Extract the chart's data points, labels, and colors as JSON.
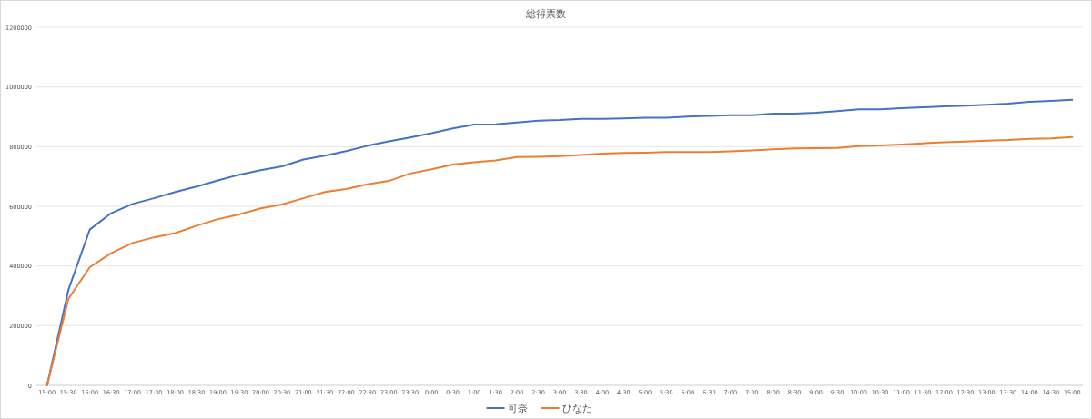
{
  "chart_data": {
    "type": "line",
    "title": "総得票数",
    "categories": [
      "15:00",
      "15:30",
      "16:00",
      "16:30",
      "17:00",
      "17:30",
      "18:00",
      "18:30",
      "19:00",
      "19:30",
      "20:00",
      "20:30",
      "21:00",
      "21:30",
      "22:00",
      "22:30",
      "23:00",
      "23:30",
      "0:00",
      "0:30",
      "1:00",
      "1:30",
      "2:00",
      "2:30",
      "3:00",
      "3:30",
      "4:00",
      "4:30",
      "5:00",
      "5:30",
      "6:00",
      "6:30",
      "7:00",
      "7:30",
      "8:00",
      "8:30",
      "9:00",
      "9:30",
      "10:00",
      "10:30",
      "11:00",
      "11:30",
      "12:00",
      "12:30",
      "13:00",
      "13:30",
      "14:00",
      "14:30",
      "15:00"
    ],
    "series": [
      {
        "name": "可奈",
        "color": "#4472c4",
        "values": [
          0,
          320000,
          522000,
          577000,
          608000,
          627000,
          648000,
          666000,
          687000,
          706000,
          721000,
          734000,
          757000,
          770000,
          785000,
          803000,
          818000,
          831000,
          845000,
          861000,
          874000,
          875000,
          881000,
          887000,
          889000,
          893000,
          893000,
          895000,
          897000,
          897000,
          901000,
          903000,
          905000,
          905000,
          911000,
          911000,
          914000,
          919000,
          925000,
          925000,
          929000,
          932000,
          935000,
          937000,
          940000,
          944000,
          950000,
          953000,
          957000
        ]
      },
      {
        "name": "ひなた",
        "color": "#ed7d31",
        "values": [
          0,
          290000,
          396000,
          443000,
          477000,
          496000,
          510000,
          535000,
          557000,
          573000,
          593000,
          606000,
          627000,
          648000,
          658000,
          674000,
          685000,
          710000,
          724000,
          740000,
          748000,
          754000,
          765000,
          766000,
          768000,
          772000,
          777000,
          779000,
          780000,
          782000,
          782000,
          782000,
          784000,
          787000,
          791000,
          794000,
          795000,
          796000,
          802000,
          804000,
          807000,
          811000,
          815000,
          817000,
          820000,
          822000,
          826000,
          828000,
          832000
        ]
      }
    ],
    "ylim": [
      0,
      1200000
    ],
    "yticks": [
      0,
      200000,
      400000,
      600000,
      800000,
      1000000,
      1200000
    ],
    "grid": "y",
    "legend": "bottom",
    "marker": "none",
    "line_style": "solid"
  }
}
